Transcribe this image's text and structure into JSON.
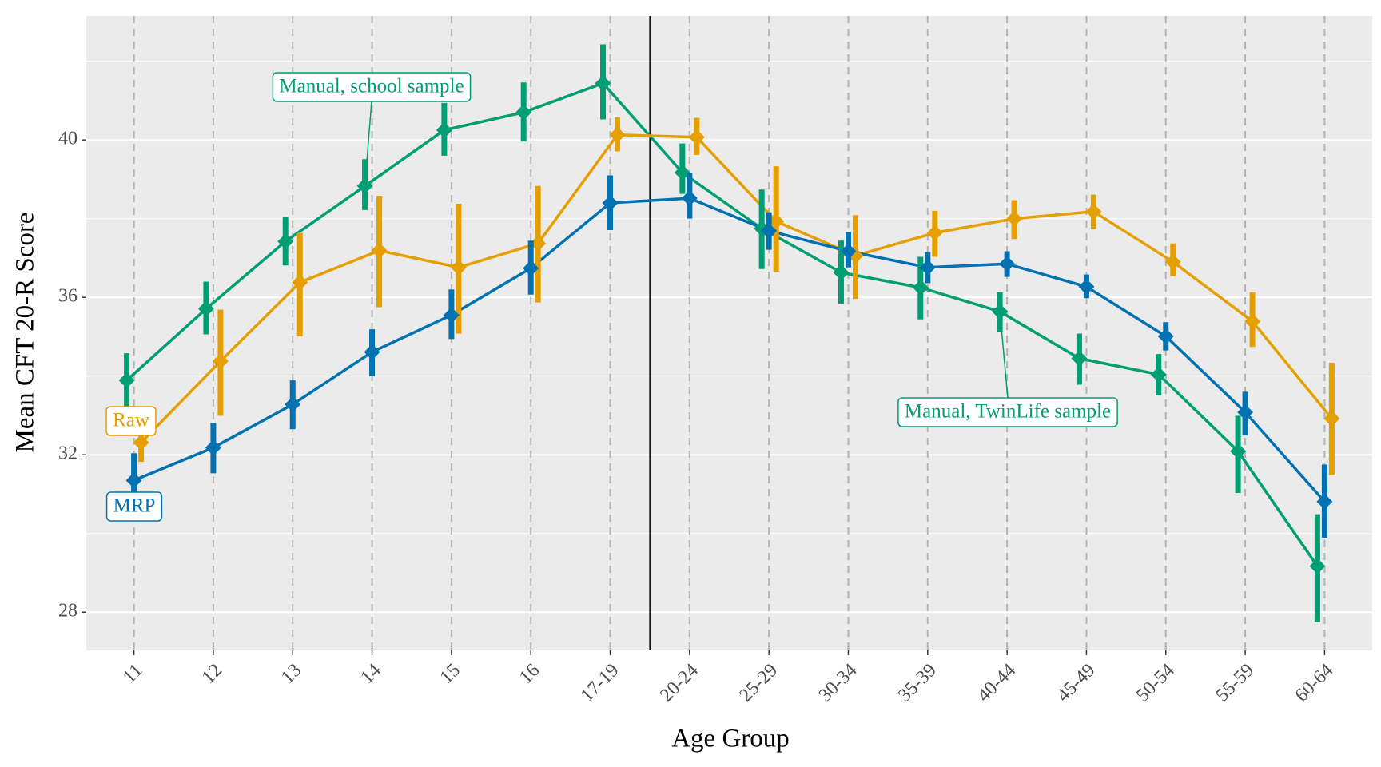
{
  "chart_data": {
    "type": "line",
    "x_label": "Age Group",
    "y_label": "Mean CFT 20-R Score",
    "categories": [
      "11",
      "12",
      "13",
      "14",
      "15",
      "16",
      "17-19",
      "20-24",
      "25-29",
      "30-34",
      "35-39",
      "40-44",
      "45-49",
      "50-54",
      "55-59",
      "60-64"
    ],
    "ylim": [
      27.03,
      43.15
    ],
    "yticks": [
      28,
      32,
      36,
      40
    ],
    "yticks_minor": [
      30,
      34,
      38,
      42
    ],
    "grid": true,
    "series": [
      {
        "color": "#009E73",
        "values": [
          33.89,
          35.71,
          37.42,
          38.83,
          40.25,
          40.7,
          41.44,
          39.17,
          37.75,
          36.63,
          36.25,
          35.64,
          34.45,
          34.04,
          32.09,
          29.17
        ],
        "lower": [
          33.17,
          35.06,
          36.81,
          38.22,
          39.6,
          39.96,
          40.52,
          38.63,
          36.72,
          35.84,
          35.44,
          35.12,
          33.78,
          33.51,
          31.03,
          27.75
        ],
        "upper": [
          34.58,
          36.4,
          38.04,
          39.51,
          40.94,
          41.46,
          42.43,
          39.91,
          38.74,
          37.44,
          37.03,
          36.13,
          35.08,
          34.56,
          32.99,
          30.49
        ]
      },
      {
        "name": "Raw",
        "color": "#E69F00",
        "values": [
          32.31,
          34.38,
          36.38,
          37.19,
          36.76,
          37.37,
          40.13,
          40.07,
          37.93,
          37.06,
          37.64,
          38.0,
          38.18,
          36.9,
          35.39,
          32.92
        ],
        "lower": [
          31.82,
          32.99,
          35.01,
          35.75,
          35.08,
          35.87,
          39.71,
          39.62,
          36.65,
          35.96,
          37.03,
          37.48,
          37.75,
          36.54,
          34.74,
          31.48
        ],
        "upper": [
          32.76,
          35.69,
          37.64,
          38.58,
          38.38,
          38.83,
          40.58,
          40.56,
          39.33,
          38.09,
          38.2,
          38.47,
          38.61,
          37.37,
          36.13,
          34.34
        ]
      },
      {
        "name": "MRP",
        "color": "#0072B2",
        "values": [
          31.35,
          32.18,
          33.28,
          34.61,
          35.55,
          36.74,
          38.4,
          38.52,
          37.69,
          37.17,
          36.76,
          36.85,
          36.27,
          35.01,
          33.08,
          30.81
        ],
        "lower": [
          30.63,
          31.53,
          32.65,
          34.0,
          34.94,
          36.07,
          37.71,
          38.0,
          37.21,
          36.76,
          36.36,
          36.52,
          35.98,
          34.65,
          32.49,
          29.89
        ],
        "upper": [
          32.04,
          32.81,
          33.89,
          35.19,
          36.2,
          37.44,
          39.1,
          39.17,
          38.16,
          37.66,
          37.15,
          37.17,
          36.58,
          35.37,
          33.6,
          31.75
        ]
      }
    ],
    "annotations": [
      {
        "text": "Manual, school sample",
        "color": "#009E73"
      },
      {
        "text": "Manual, TwinLife sample",
        "color": "#009E73"
      }
    ]
  }
}
